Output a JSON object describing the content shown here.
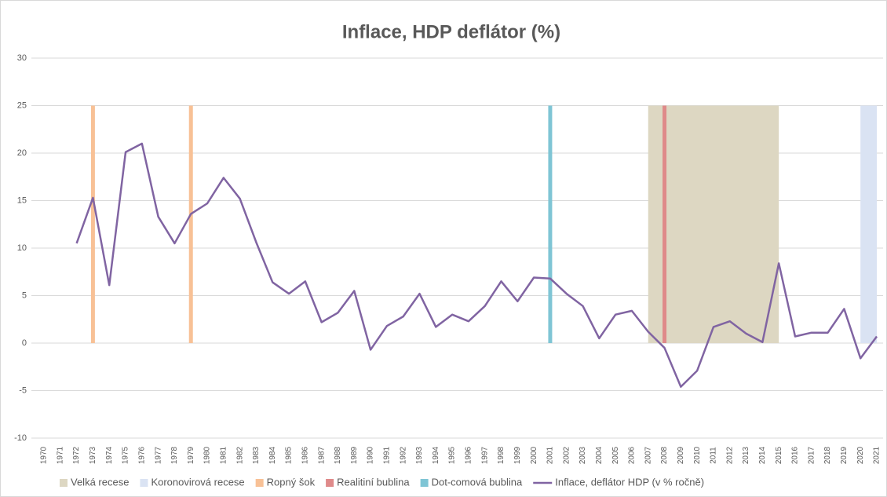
{
  "chart_data": {
    "type": "line",
    "title": "Inflace, HDP deflátor (%)",
    "categories": [
      "1970",
      "1971",
      "1972",
      "1973",
      "1974",
      "1975",
      "1976",
      "1977",
      "1978",
      "1979",
      "1980",
      "1981",
      "1982",
      "1983",
      "1984",
      "1985",
      "1986",
      "1987",
      "1988",
      "1989",
      "1990",
      "1991",
      "1992",
      "1993",
      "1994",
      "1995",
      "1996",
      "1997",
      "1998",
      "1999",
      "2000",
      "2001",
      "2002",
      "2003",
      "2004",
      "2005",
      "2006",
      "2007",
      "2008",
      "2009",
      "2010",
      "2011",
      "2012",
      "2013",
      "2014",
      "2015",
      "2016",
      "2017",
      "2018",
      "2019",
      "2020",
      "2021"
    ],
    "series": [
      {
        "name": "Velká recese",
        "type": "area",
        "color": "#ddd7c2",
        "values": [
          null,
          null,
          null,
          null,
          null,
          null,
          null,
          null,
          null,
          null,
          null,
          null,
          null,
          null,
          null,
          null,
          null,
          null,
          null,
          null,
          null,
          null,
          null,
          null,
          null,
          null,
          null,
          null,
          null,
          null,
          null,
          null,
          null,
          null,
          null,
          null,
          null,
          25,
          25,
          25,
          25,
          25,
          25,
          25,
          25,
          25,
          null,
          null,
          null,
          null,
          null,
          null
        ]
      },
      {
        "name": "Koronovirová recese",
        "type": "area",
        "color": "#dae3f3",
        "values": [
          null,
          null,
          null,
          null,
          null,
          null,
          null,
          null,
          null,
          null,
          null,
          null,
          null,
          null,
          null,
          null,
          null,
          null,
          null,
          null,
          null,
          null,
          null,
          null,
          null,
          null,
          null,
          null,
          null,
          null,
          null,
          null,
          null,
          null,
          null,
          null,
          null,
          null,
          null,
          null,
          null,
          null,
          null,
          null,
          null,
          null,
          null,
          null,
          null,
          null,
          25,
          25
        ]
      },
      {
        "name": "Ropný šok",
        "type": "bar",
        "color": "#f8c196",
        "values": [
          null,
          null,
          null,
          25,
          null,
          null,
          null,
          null,
          null,
          25,
          null,
          null,
          null,
          null,
          null,
          null,
          null,
          null,
          null,
          null,
          null,
          null,
          null,
          null,
          null,
          null,
          null,
          null,
          null,
          null,
          null,
          null,
          null,
          null,
          null,
          null,
          null,
          null,
          null,
          null,
          null,
          null,
          null,
          null,
          null,
          null,
          null,
          null,
          null,
          null,
          null,
          null
        ]
      },
      {
        "name": "Realitiní bublina",
        "type": "bar",
        "color": "#df8a8a",
        "values": [
          null,
          null,
          null,
          null,
          null,
          null,
          null,
          null,
          null,
          null,
          null,
          null,
          null,
          null,
          null,
          null,
          null,
          null,
          null,
          null,
          null,
          null,
          null,
          null,
          null,
          null,
          null,
          null,
          null,
          null,
          null,
          null,
          null,
          null,
          null,
          null,
          null,
          null,
          25,
          null,
          null,
          null,
          null,
          null,
          null,
          null,
          null,
          null,
          null,
          null,
          null,
          null
        ]
      },
      {
        "name": "Dot-comová bublina",
        "type": "bar",
        "color": "#7fc5d5",
        "values": [
          null,
          null,
          null,
          null,
          null,
          null,
          null,
          null,
          null,
          null,
          null,
          null,
          null,
          null,
          null,
          null,
          null,
          null,
          null,
          null,
          null,
          null,
          null,
          null,
          null,
          null,
          null,
          null,
          null,
          null,
          null,
          25,
          null,
          null,
          null,
          null,
          null,
          null,
          null,
          null,
          null,
          null,
          null,
          null,
          null,
          null,
          null,
          null,
          null,
          null,
          null,
          null
        ]
      },
      {
        "name": "Inflace, deflátor HDP (v % ročně)",
        "type": "line",
        "color": "#8064a2",
        "values": [
          null,
          null,
          10.5,
          15.3,
          6.1,
          20.1,
          21.0,
          13.3,
          10.5,
          13.6,
          14.7,
          17.4,
          15.2,
          10.6,
          6.4,
          5.2,
          6.5,
          2.2,
          3.2,
          5.5,
          -0.7,
          1.8,
          2.8,
          5.2,
          1.7,
          3.0,
          2.3,
          3.9,
          6.5,
          4.4,
          6.9,
          6.8,
          5.2,
          3.9,
          0.5,
          3.0,
          3.4,
          1.2,
          -0.5,
          -4.6,
          -2.9,
          1.7,
          2.3,
          1.0,
          0.1,
          8.4,
          0.7,
          1.1,
          1.1,
          3.6,
          -1.6,
          0.7
        ]
      }
    ],
    "ylim": [
      -10,
      30
    ],
    "yticks": [
      -10,
      -5,
      0,
      5,
      10,
      15,
      20,
      25,
      30
    ],
    "grid": true,
    "legend": "bottom"
  }
}
